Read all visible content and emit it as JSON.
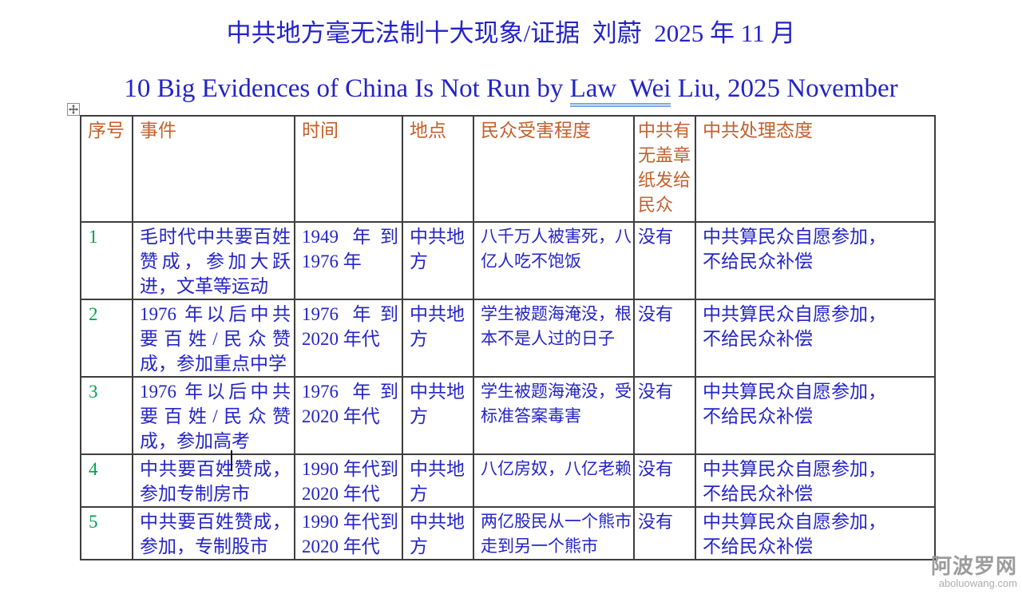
{
  "page": {
    "title_zh": "中共地方毫无法制十大现象/证据  刘蔚  2025 年 11 月",
    "title_en_prefix": "10 Big Evidences of China Is Not Run by ",
    "title_en_underlined": "Law  Wei",
    "title_en_suffix": " Liu, 2025 November"
  },
  "colors": {
    "body_text_blue": "#2424C8",
    "header_orange": "#C2602C",
    "index_green": "#00A050",
    "table_border": "#3E3E3E",
    "underline_light_blue": "#7FA8D9",
    "watermark_gray": "#9C9C9C"
  },
  "table": {
    "headers": {
      "index": "序号",
      "event": "事件",
      "time": "时间",
      "place": "地点",
      "harm": "民众受害程度",
      "stamp_lines": [
        "中共有",
        "无盖章",
        "纸发给",
        "民众"
      ],
      "attitude": "中共处理态度"
    },
    "rows": [
      {
        "index": "1",
        "event": [
          "毛时代中共要百姓",
          "赞成，参加大跃",
          "进，文革等运动"
        ],
        "time": [
          "1949 年到",
          "1976 年"
        ],
        "place": [
          "中共地",
          "方"
        ],
        "harm": [
          "八千万人被害死，八",
          "亿人吃不饱饭"
        ],
        "stamp": "没有",
        "attitude": [
          "中共算民众自愿参加，",
          "不给民众补偿"
        ]
      },
      {
        "index": "2",
        "event": [
          "1976 年以后中共",
          "要百姓/民众赞",
          "成，参加重点中学"
        ],
        "time": [
          "1976 年到",
          "2020 年代"
        ],
        "place": [
          "中共地",
          "方"
        ],
        "harm": [
          "学生被题海淹没，根",
          "本不是人过的日子"
        ],
        "stamp": "没有",
        "attitude": [
          "中共算民众自愿参加，",
          "不给民众补偿"
        ]
      },
      {
        "index": "3",
        "event": [
          "1976 年以后中共",
          "要百姓/民众赞",
          "成，参加高考"
        ],
        "time": [
          "1976 年到",
          "2020 年代"
        ],
        "place": [
          "中共地",
          "方"
        ],
        "harm": [
          "学生被题海淹没，受",
          "标准答案毒害"
        ],
        "stamp": "没有",
        "attitude": [
          "中共算民众自愿参加，",
          "不给民众补偿"
        ]
      },
      {
        "index": "4",
        "event": [
          "中共要百姓赞成，",
          "参加专制房市"
        ],
        "time": [
          "1990 年代到",
          "2020 年代"
        ],
        "place": [
          "中共地",
          "方"
        ],
        "harm": [
          "八亿房奴，八亿老赖"
        ],
        "stamp": "没有",
        "attitude": [
          "中共算民众自愿参加，",
          "不给民众补偿"
        ]
      },
      {
        "index": "5",
        "event": [
          "中共要百姓赞成，",
          "参加，专制股市"
        ],
        "time": [
          "1990 年代到",
          "2020 年代"
        ],
        "place": [
          "中共地",
          "方"
        ],
        "harm": [
          "两亿股民从一个熊市",
          "走到另一个熊市"
        ],
        "stamp": "没有",
        "attitude": [
          "中共算民众自愿参加，",
          "不给民众补偿"
        ]
      }
    ]
  },
  "watermark": {
    "name": "阿波罗网",
    "domain": "aboluowang.com"
  }
}
